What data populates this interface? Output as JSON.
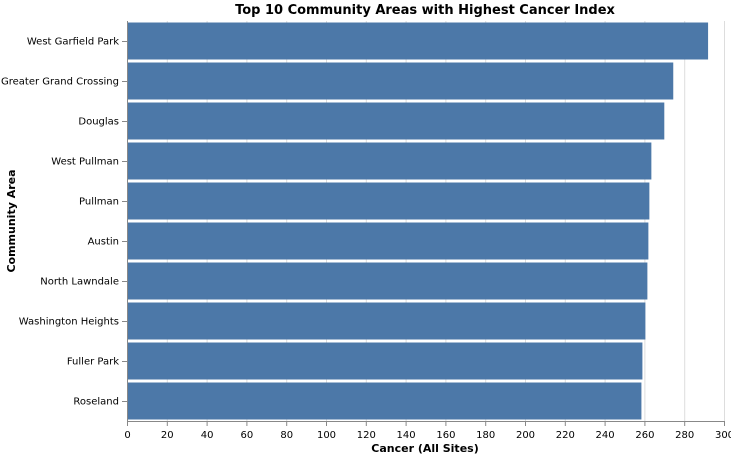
{
  "chart_data": {
    "type": "bar",
    "orientation": "horizontal",
    "title": "Top 10 Community Areas with Highest Cancer Index",
    "xlabel": "Cancer (All Sites)",
    "ylabel": "Community Area",
    "xlim": [
      0,
      300
    ],
    "xticks": [
      0,
      20,
      40,
      60,
      80,
      100,
      120,
      140,
      160,
      180,
      200,
      220,
      240,
      260,
      280,
      300
    ],
    "grid": true,
    "color": "#4c78a8",
    "categories": [
      "West Garfield Park",
      "Greater Grand Crossing",
      "Douglas",
      "West Pullman",
      "Pullman",
      "Austin",
      "North Lawndale",
      "Washington Heights",
      "Fuller Park",
      "Roseland"
    ],
    "values": [
      292,
      274.5,
      270,
      263.5,
      262.5,
      262,
      261.5,
      260.5,
      259,
      258.5
    ]
  }
}
